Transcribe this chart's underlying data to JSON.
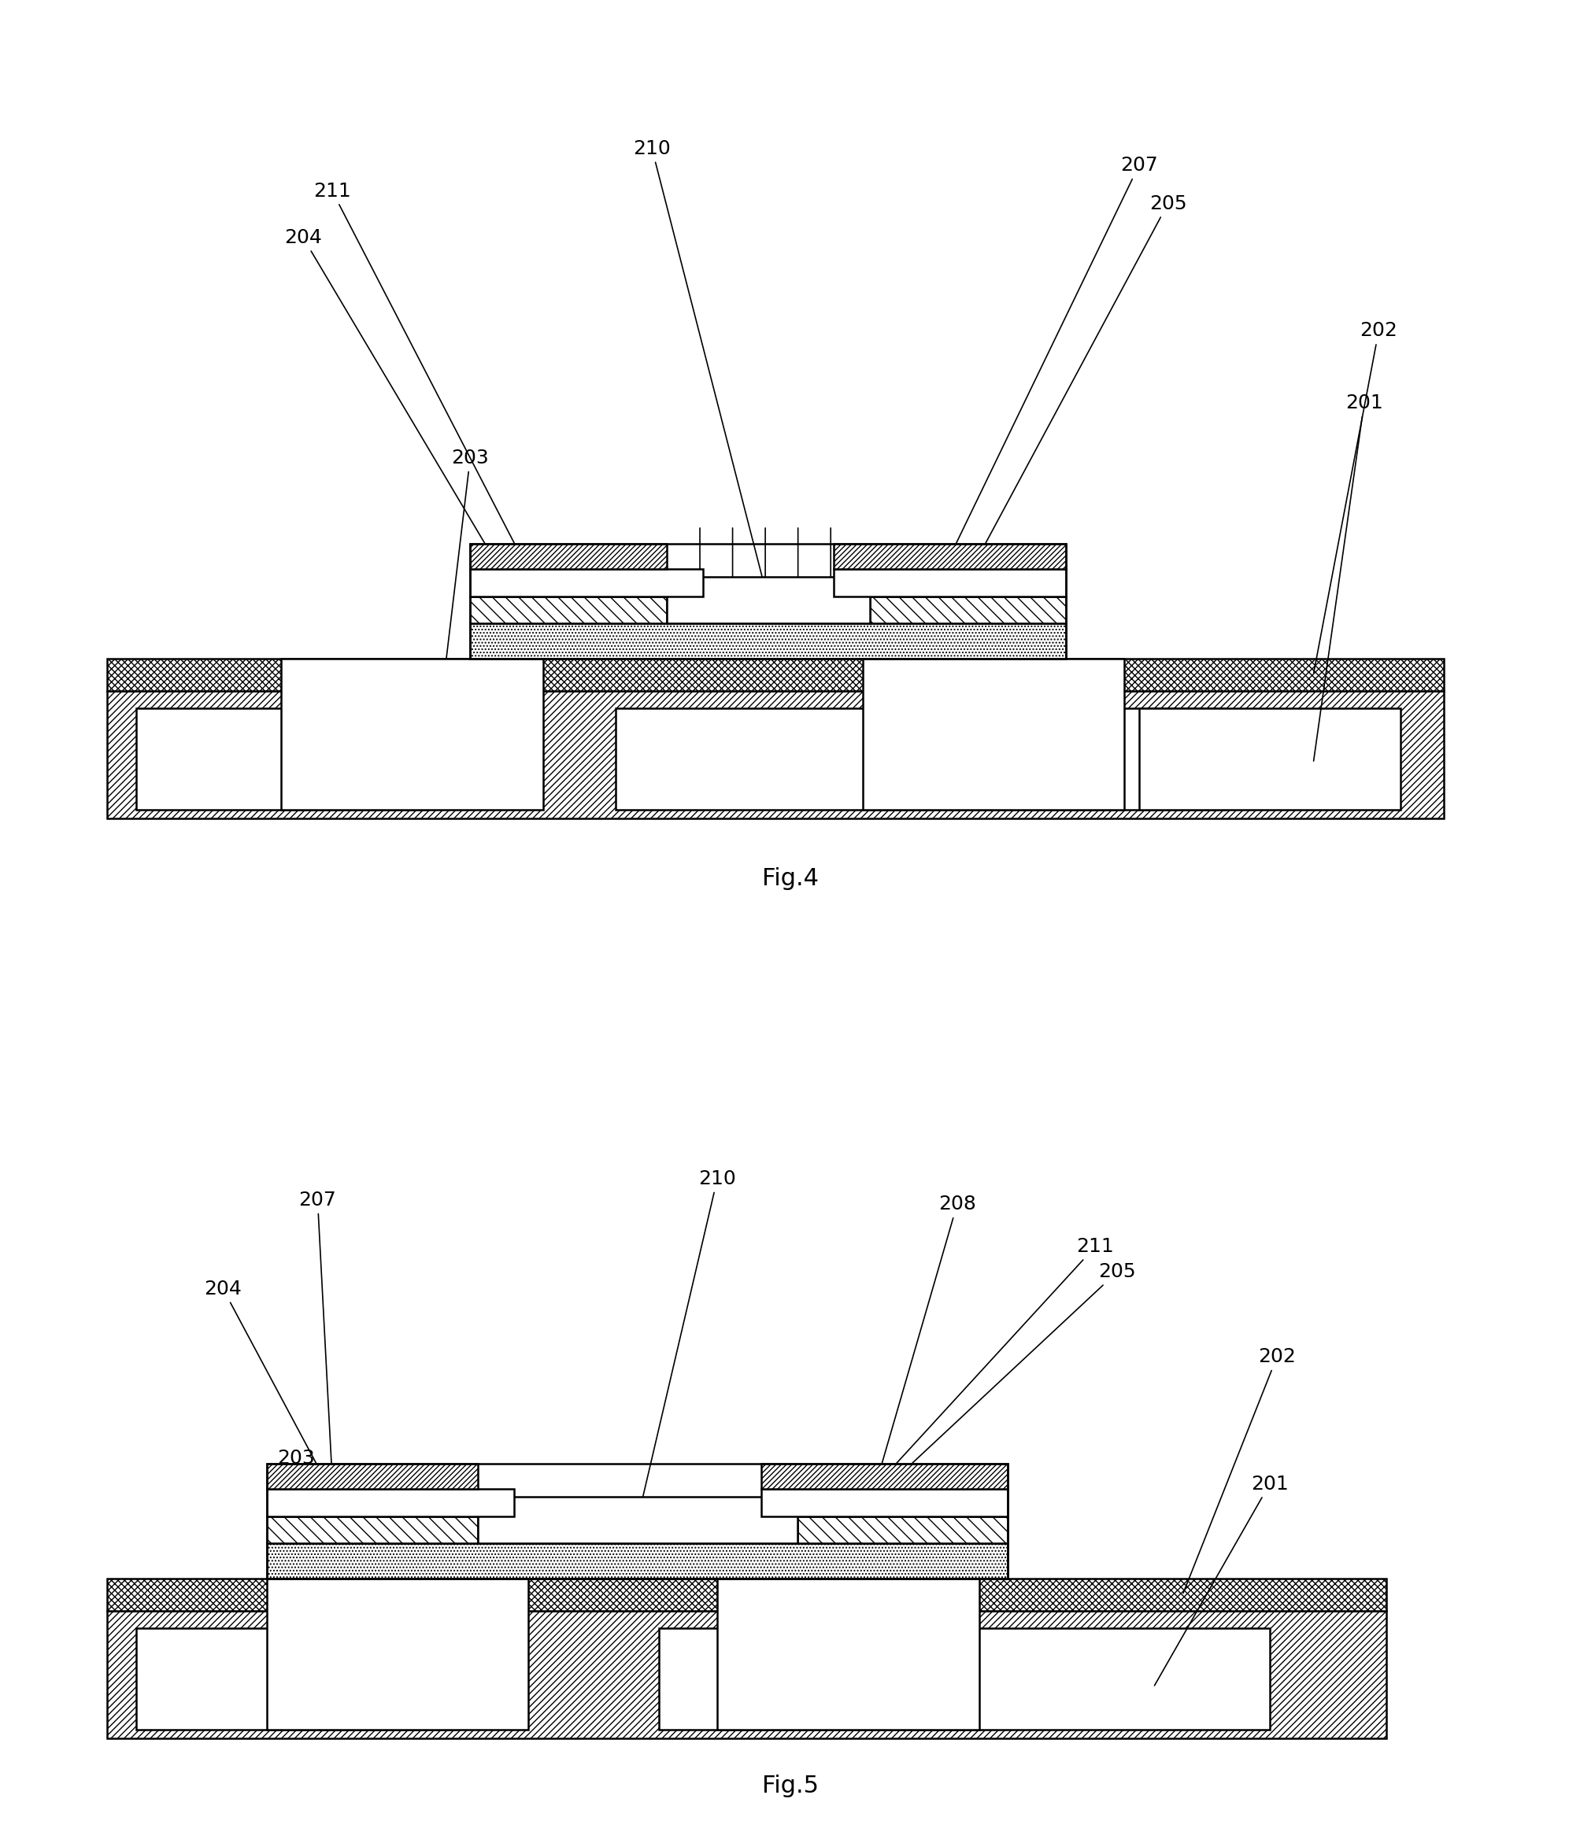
{
  "background": "#ffffff",
  "line_color": "#000000",
  "fontsize": 18,
  "fig4_title": "Fig.4",
  "fig5_title": "Fig.5"
}
